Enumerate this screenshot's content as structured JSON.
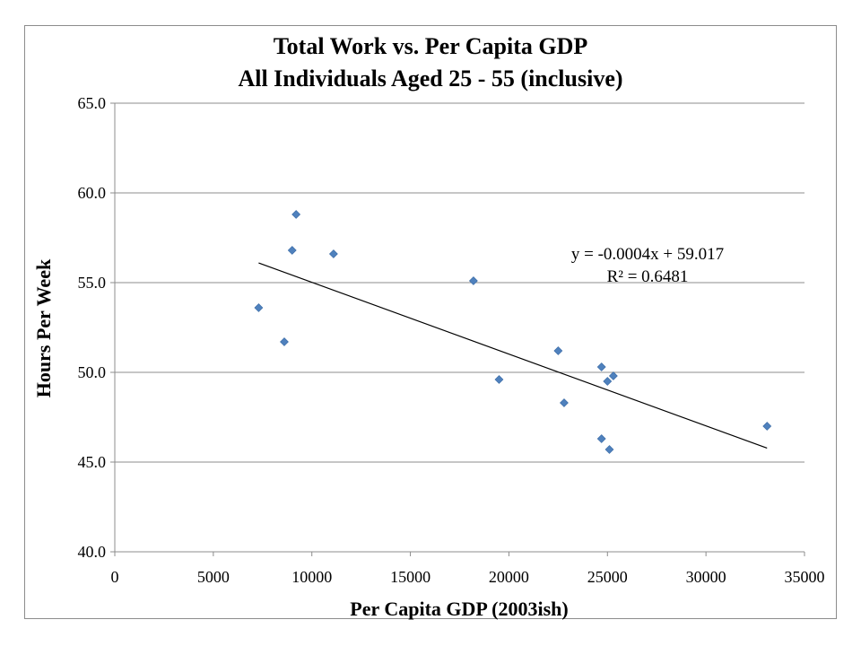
{
  "chart_data": {
    "type": "scatter",
    "title_lines": [
      "Total Work vs. Per Capita GDP",
      "All Individuals Aged 25 - 55 (inclusive)"
    ],
    "xlabel": "Per Capita GDP (2003ish)",
    "ylabel": "Hours Per Week",
    "xlim": [
      0,
      35000
    ],
    "ylim": [
      40.0,
      65.0
    ],
    "x_ticks": [
      0,
      5000,
      10000,
      15000,
      20000,
      25000,
      30000,
      35000
    ],
    "y_ticks": [
      "40.0",
      "45.0",
      "50.0",
      "55.0",
      "60.0",
      "65.0"
    ],
    "y_tick_values": [
      40,
      45,
      50,
      55,
      60,
      65
    ],
    "grid": "horizontal",
    "legend": "none",
    "marker_color": "#4F81BD",
    "series": [
      {
        "points": [
          {
            "x": 7300,
            "y": 53.6
          },
          {
            "x": 8600,
            "y": 51.7
          },
          {
            "x": 9000,
            "y": 56.8
          },
          {
            "x": 9200,
            "y": 58.8
          },
          {
            "x": 11100,
            "y": 56.6
          },
          {
            "x": 18200,
            "y": 55.1
          },
          {
            "x": 19500,
            "y": 49.6
          },
          {
            "x": 22500,
            "y": 51.2
          },
          {
            "x": 22800,
            "y": 48.3
          },
          {
            "x": 24700,
            "y": 50.3
          },
          {
            "x": 24700,
            "y": 46.3
          },
          {
            "x": 25000,
            "y": 49.5
          },
          {
            "x": 25100,
            "y": 45.7
          },
          {
            "x": 25300,
            "y": 49.8
          },
          {
            "x": 33100,
            "y": 47.0
          }
        ]
      }
    ],
    "trendline": {
      "slope": -0.0004,
      "intercept": 59.017,
      "x_range": [
        7300,
        33100
      ],
      "equation": "y = -0.0004x + 59.017",
      "r_squared": "R² = 0.6481"
    }
  }
}
